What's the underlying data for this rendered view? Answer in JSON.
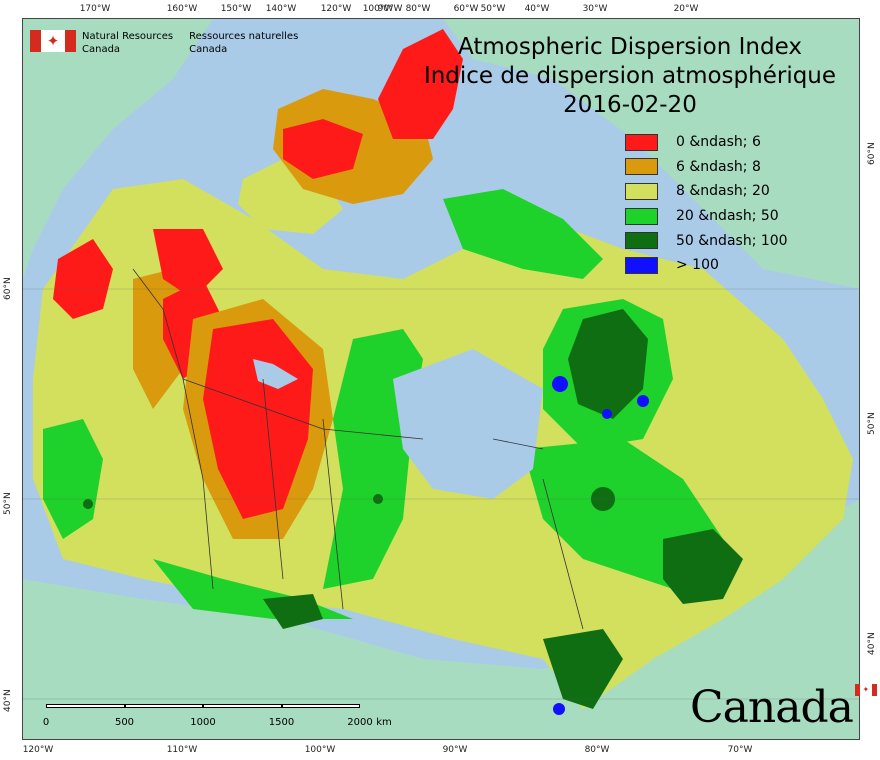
{
  "title": {
    "line_en": "Atmospheric Dispersion Index",
    "line_fr": "Indice de dispersion atmosphérique",
    "date": "2016-02-20"
  },
  "agency": {
    "name_en_1": "Natural Resources",
    "name_en_2": "Canada",
    "name_fr_1": "Ressources naturelles",
    "name_fr_2": "Canada",
    "flag_icon": "maple-leaf-flag-icon"
  },
  "wordmark": "Canada",
  "legend": [
    {
      "label": "0 &ndash; 6",
      "color": "#ff1a1a"
    },
    {
      "label": "6 &ndash; 8",
      "color": "#d99a0e"
    },
    {
      "label": "8 &ndash; 20",
      "color": "#d2e05e"
    },
    {
      "label": "20 &ndash; 50",
      "color": "#1fd12b"
    },
    {
      "label": "50 &ndash; 100",
      "color": "#0f6e12"
    },
    {
      "label": "> 100",
      "color": "#1010ff"
    }
  ],
  "scale": {
    "ticks": [
      "0",
      "500",
      "1000",
      "1500",
      "2000"
    ],
    "unit": "km"
  },
  "graticule": {
    "top": [
      "170°W",
      "160°W",
      "150°W",
      "140°W",
      "120°W",
      "100°W",
      "90°W",
      "80°W",
      "60°W",
      "50°W",
      "40°W",
      "30°W",
      "20°W"
    ],
    "bottom": [
      "120°W",
      "110°W",
      "100°W",
      "90°W",
      "80°W",
      "70°W"
    ],
    "left": [
      "60°N",
      "50°N",
      "40°N"
    ],
    "right": [
      "60°N",
      "50°N",
      "40°N"
    ]
  },
  "colors": {
    "ocean": "#a9cbe8",
    "foreign_land": "#a8dcc0",
    "border": "#333333"
  }
}
